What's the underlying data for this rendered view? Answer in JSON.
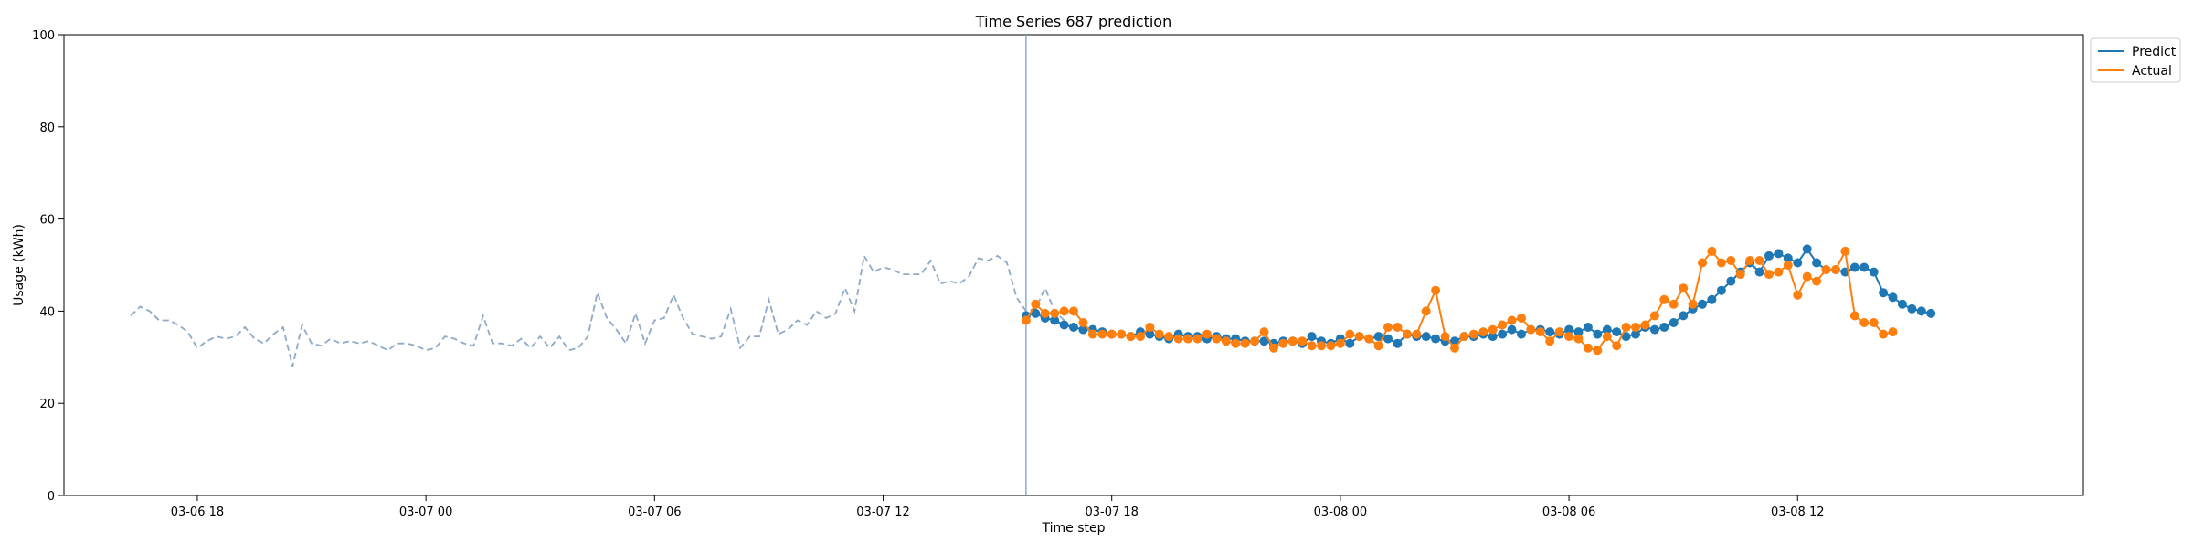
{
  "chart_data": {
    "type": "line",
    "title": "Time Series 687 prediction",
    "xlabel": "Time step",
    "ylabel": "Usage (kWh)",
    "ylim": [
      0,
      100
    ],
    "yticks": [
      0,
      20,
      40,
      60,
      80,
      100
    ],
    "xlim": [
      "2023-03-06 14:30",
      "2023-03-08 19:30"
    ],
    "xticks": [
      {
        "t": "2023-03-06 18:00",
        "label": "03-06 18"
      },
      {
        "t": "2023-03-07 00:00",
        "label": "03-07 00"
      },
      {
        "t": "2023-03-07 06:00",
        "label": "03-07 06"
      },
      {
        "t": "2023-03-07 12:00",
        "label": "03-07 12"
      },
      {
        "t": "2023-03-07 18:00",
        "label": "03-07 18"
      },
      {
        "t": "2023-03-08 00:00",
        "label": "03-08 00"
      },
      {
        "t": "2023-03-08 06:00",
        "label": "03-08 06"
      },
      {
        "t": "2023-03-08 12:00",
        "label": "03-08 12"
      }
    ],
    "grid": false,
    "legend_position": "top-right",
    "forecast_start": "2023-03-07 15:45",
    "colors": {
      "history": "#8fa9c9",
      "predict": "#1f77b4",
      "actual": "#ff7f0e",
      "divider": "#8fa9d8"
    },
    "history": {
      "start": "2023-03-06 16:15",
      "step_minutes": 15,
      "values": [
        39,
        41,
        40,
        38,
        38,
        37,
        35.5,
        32,
        33.5,
        34.5,
        34,
        34.5,
        36.5,
        34,
        33,
        35,
        36.5,
        28,
        37,
        33,
        32.5,
        34,
        33,
        33.5,
        33,
        33.5,
        32.5,
        31.5,
        33,
        33,
        32.5,
        31.5,
        32,
        34.5,
        34,
        33,
        32.5,
        39,
        33,
        33,
        32.5,
        34,
        32,
        34.5,
        32,
        34.5,
        31.5,
        32,
        34.5,
        44,
        38.5,
        36,
        33,
        39.5,
        33,
        38,
        38.5,
        43.5,
        38.5,
        35,
        34.5,
        34,
        34.5,
        40.5,
        32,
        34.5,
        34.5,
        42.5,
        35,
        36,
        38,
        37,
        40,
        38.5,
        39.5,
        45,
        40,
        52,
        48.5,
        49.5,
        49,
        48,
        48,
        48,
        51,
        46,
        46.5,
        46,
        47.5,
        51.5,
        51,
        52,
        50.5,
        43,
        40,
        40.5,
        45,
        40,
        38
      ]
    },
    "series": [
      {
        "name": "Predict",
        "start": "2023-03-07 15:45",
        "step_minutes": 15,
        "values": [
          39,
          39.5,
          38.5,
          38,
          37,
          36.5,
          36,
          36,
          35.5,
          35,
          35,
          34.5,
          35.5,
          35,
          34.5,
          34,
          35,
          34.5,
          34.5,
          34,
          34.5,
          34,
          34,
          33.5,
          33.5,
          33.5,
          33,
          33.5,
          33.5,
          33,
          34.5,
          33.5,
          33,
          34,
          33,
          34.5,
          34,
          34.5,
          34,
          33,
          35,
          34.5,
          34.5,
          34,
          33.5,
          33.5,
          34.5,
          34.5,
          35,
          34.5,
          35,
          36,
          35,
          36,
          36,
          35.5,
          35,
          36,
          35.5,
          36.5,
          35,
          36,
          35.5,
          34.5,
          35,
          36.5,
          36,
          36.5,
          37.5,
          39,
          40.5,
          41.5,
          42.5,
          44.5,
          46.5,
          48.5,
          50.5,
          48.5,
          52,
          52.5,
          51.5,
          50.5,
          53.5,
          50.5,
          49,
          49,
          48.5,
          49.5,
          49.5,
          48.5,
          44,
          43,
          41.5,
          40.5,
          40,
          39.5
        ]
      },
      {
        "name": "Actual",
        "start": "2023-03-07 15:45",
        "step_minutes": 15,
        "values": [
          38,
          41.5,
          39.5,
          39.5,
          40,
          40,
          37.5,
          35,
          35,
          35,
          35,
          34.5,
          34.5,
          36.5,
          35,
          34.5,
          34,
          34,
          34,
          35,
          34,
          33.5,
          33,
          33,
          33.5,
          35.5,
          32,
          33,
          33.5,
          33.5,
          32.5,
          32.5,
          32.5,
          33,
          35,
          34.5,
          34,
          32.5,
          36.5,
          36.5,
          35,
          35,
          40,
          44.5,
          34.5,
          32,
          34.5,
          35,
          35.5,
          36,
          37,
          38,
          38.5,
          36,
          35.5,
          33.5,
          35.5,
          34.5,
          34,
          32,
          31.5,
          34.5,
          32.5,
          36.5,
          36.5,
          37,
          39,
          42.5,
          41.5,
          45,
          41.5,
          50.5,
          53,
          50.5,
          51,
          48,
          51,
          51,
          48,
          48.5,
          50,
          43.5,
          47.5,
          46.5,
          49,
          49,
          53,
          39,
          37.5,
          37.5,
          35,
          35.5
        ]
      }
    ]
  }
}
